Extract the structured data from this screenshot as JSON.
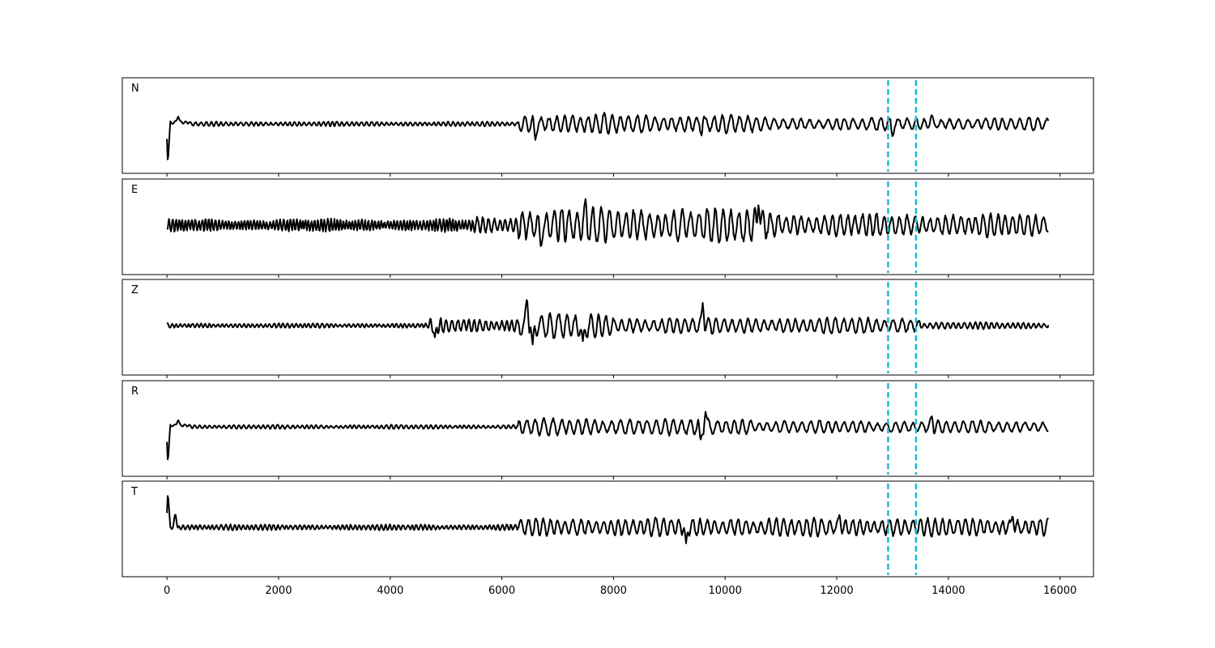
{
  "chart_data": {
    "type": "line",
    "xlim": [
      -800,
      16600
    ],
    "x_ticks": [
      0,
      2000,
      4000,
      6000,
      8000,
      10000,
      12000,
      14000,
      16000
    ],
    "x_tick_labels": [
      "0",
      "2000",
      "4000",
      "6000",
      "8000",
      "10000",
      "12000",
      "14000",
      "16000"
    ],
    "x_range": [
      0,
      15800
    ],
    "vlines": [
      12920,
      13420
    ],
    "colors": {
      "trace": "#000000",
      "vline": "#17becf"
    },
    "panels": [
      {
        "label": "N",
        "segments": [
          {
            "start": 0,
            "end": 10,
            "amplitude": 0.0,
            "wavelength": 100,
            "baseline": 0.2
          },
          {
            "start": 10,
            "end": 20,
            "amplitude": 0.0,
            "wavelength": 100,
            "baseline": -1.2
          },
          {
            "start": 20,
            "end": 400,
            "amplitude": 0.05,
            "wavelength": 100,
            "baseline": 0.05
          },
          {
            "start": 400,
            "end": 6300,
            "amplitude": 0.08,
            "wavelength": 90,
            "baseline": 0.0
          },
          {
            "start": 6300,
            "end": 8000,
            "amplitude": 0.35,
            "wavelength": 150,
            "baseline": 0.0
          },
          {
            "start": 8000,
            "end": 10500,
            "amplitude": 0.32,
            "wavelength": 160,
            "baseline": 0.0
          },
          {
            "start": 10500,
            "end": 15800,
            "amplitude": 0.22,
            "wavelength": 160,
            "baseline": 0.0
          }
        ],
        "peaks": [
          {
            "x": 20,
            "y": -1.22
          },
          {
            "x": 200,
            "y": 0.28
          },
          {
            "x": 6600,
            "y": -0.55
          },
          {
            "x": 9600,
            "y": 0.48
          },
          {
            "x": 9580,
            "y": -0.45
          },
          {
            "x": 13000,
            "y": -0.45
          },
          {
            "x": 13700,
            "y": 0.32
          }
        ]
      },
      {
        "label": "E",
        "segments": [
          {
            "start": 0,
            "end": 5500,
            "amplitude": 0.22,
            "wavelength": 60,
            "baseline": 0.0
          },
          {
            "start": 5500,
            "end": 6300,
            "amplitude": 0.3,
            "wavelength": 100,
            "baseline": 0.0
          },
          {
            "start": 6300,
            "end": 11000,
            "amplitude": 0.62,
            "wavelength": 150,
            "baseline": 0.0
          },
          {
            "start": 11000,
            "end": 15800,
            "amplitude": 0.4,
            "wavelength": 140,
            "baseline": 0.0
          }
        ],
        "peaks": [
          {
            "x": 6700,
            "y": -0.78
          },
          {
            "x": 7500,
            "y": 0.9
          },
          {
            "x": 10600,
            "y": 0.82
          },
          {
            "x": 15780,
            "y": -0.22
          }
        ]
      },
      {
        "label": "Z",
        "segments": [
          {
            "start": 0,
            "end": 4700,
            "amplitude": 0.08,
            "wavelength": 80,
            "baseline": 0.0
          },
          {
            "start": 4700,
            "end": 6300,
            "amplitude": 0.25,
            "wavelength": 100,
            "baseline": 0.0
          },
          {
            "start": 6300,
            "end": 8000,
            "amplitude": 0.45,
            "wavelength": 150,
            "baseline": 0.0
          },
          {
            "start": 8000,
            "end": 13500,
            "amplitude": 0.28,
            "wavelength": 150,
            "baseline": 0.0
          },
          {
            "start": 13500,
            "end": 15800,
            "amplitude": 0.12,
            "wavelength": 100,
            "baseline": 0.0
          }
        ],
        "peaks": [
          {
            "x": 4800,
            "y": -0.4
          },
          {
            "x": 6450,
            "y": 1.0
          },
          {
            "x": 6550,
            "y": -0.7
          },
          {
            "x": 7450,
            "y": -0.58
          },
          {
            "x": 9600,
            "y": 0.78
          }
        ]
      },
      {
        "label": "R",
        "segments": [
          {
            "start": 0,
            "end": 10,
            "amplitude": 0.0,
            "wavelength": 100,
            "baseline": 0.1
          },
          {
            "start": 10,
            "end": 20,
            "amplitude": 0.0,
            "wavelength": 100,
            "baseline": -1.1
          },
          {
            "start": 20,
            "end": 400,
            "amplitude": 0.05,
            "wavelength": 100,
            "baseline": 0.05
          },
          {
            "start": 400,
            "end": 6300,
            "amplitude": 0.07,
            "wavelength": 90,
            "baseline": 0.0
          },
          {
            "start": 6300,
            "end": 10500,
            "amplitude": 0.3,
            "wavelength": 160,
            "baseline": 0.0
          },
          {
            "start": 10500,
            "end": 15800,
            "amplitude": 0.22,
            "wavelength": 160,
            "baseline": 0.0
          }
        ],
        "peaks": [
          {
            "x": 20,
            "y": -1.12
          },
          {
            "x": 200,
            "y": 0.25
          },
          {
            "x": 9560,
            "y": -0.5
          },
          {
            "x": 9650,
            "y": 0.55
          },
          {
            "x": 13700,
            "y": 0.4
          }
        ]
      },
      {
        "label": "T",
        "segments": [
          {
            "start": 0,
            "end": 10,
            "amplitude": 0.0,
            "wavelength": 100,
            "baseline": -0.1
          },
          {
            "start": 10,
            "end": 20,
            "amplitude": 0.0,
            "wavelength": 100,
            "baseline": 1.05
          },
          {
            "start": 20,
            "end": 6300,
            "amplitude": 0.1,
            "wavelength": 80,
            "baseline": 0.0
          },
          {
            "start": 6300,
            "end": 15800,
            "amplitude": 0.32,
            "wavelength": 140,
            "baseline": 0.0
          }
        ],
        "peaks": [
          {
            "x": 20,
            "y": 1.08
          },
          {
            "x": 150,
            "y": 0.5
          },
          {
            "x": 9300,
            "y": -0.55
          },
          {
            "x": 12050,
            "y": 0.45
          },
          {
            "x": 15150,
            "y": 0.45
          }
        ]
      }
    ]
  }
}
